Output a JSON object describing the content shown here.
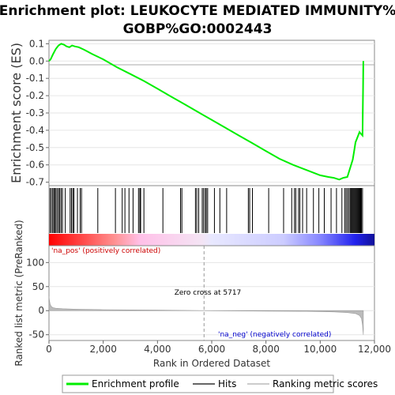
{
  "chart_data": {
    "type": "line",
    "title_line1": "Enrichment plot: LEUKOCYTE MEDIATED IMMUNITY%",
    "title_line2": "GOBP%GO:0002443",
    "top_panel": {
      "ylabel": "Enrichment score (ES)",
      "ylim": [
        -0.72,
        0.12
      ],
      "yticks": [
        0.1,
        0.0,
        -0.1,
        -0.2,
        -0.3,
        -0.4,
        -0.5,
        -0.6,
        -0.7
      ],
      "ytick_labels": [
        "0.1",
        "0.0",
        "-0.1",
        "-0.2",
        "-0.3",
        "-0.4",
        "-0.5",
        "-0.6",
        "-0.7"
      ],
      "series_name": "Enrichment profile",
      "series_color": "#00ee00",
      "x": [
        0,
        60,
        150,
        250,
        350,
        450,
        550,
        650,
        750,
        850,
        950,
        1100,
        1300,
        1600,
        2000,
        2500,
        3000,
        3500,
        4000,
        4500,
        5000,
        5500,
        6000,
        6500,
        7000,
        7500,
        8000,
        8500,
        9000,
        9500,
        10000,
        10300,
        10500,
        10700,
        10850,
        11000,
        11100,
        11200,
        11250,
        11300,
        11350,
        11400,
        11450,
        11500,
        11560,
        11570,
        11580,
        11590
      ],
      "y": [
        0.0,
        0.01,
        0.04,
        0.07,
        0.09,
        0.1,
        0.095,
        0.085,
        0.08,
        0.09,
        0.085,
        0.08,
        0.065,
        0.04,
        0.01,
        -0.035,
        -0.075,
        -0.115,
        -0.16,
        -0.205,
        -0.25,
        -0.295,
        -0.34,
        -0.385,
        -0.43,
        -0.475,
        -0.52,
        -0.565,
        -0.6,
        -0.63,
        -0.66,
        -0.67,
        -0.675,
        -0.685,
        -0.675,
        -0.67,
        -0.62,
        -0.57,
        -0.52,
        -0.47,
        -0.45,
        -0.43,
        -0.41,
        -0.42,
        -0.43,
        -0.3,
        -0.15,
        0.0
      ]
    },
    "hits_panel": {
      "legend_label": "Hits",
      "hit_positions": [
        40,
        90,
        140,
        180,
        220,
        260,
        310,
        360,
        400,
        450,
        500,
        600,
        780,
        830,
        880,
        920,
        1050,
        1150,
        1200,
        1800,
        2450,
        2700,
        2800,
        2950,
        3100,
        3300,
        3350,
        3380,
        3500,
        4200,
        4850,
        4900,
        5400,
        5450,
        5520,
        5650,
        5700,
        5760,
        5800,
        5850,
        6100,
        6300,
        6550,
        7350,
        7400,
        7500,
        8100,
        8650,
        8950,
        9050,
        9100,
        9200,
        9250,
        9350,
        9500,
        9750,
        9950,
        10150,
        10400,
        10600,
        10800,
        10900,
        10950,
        11000,
        11050,
        11100,
        11130,
        11160,
        11190,
        11220,
        11250,
        11280,
        11310,
        11340,
        11370,
        11400,
        11430,
        11460,
        11490,
        11520,
        11560
      ],
      "heatmap_colors": [
        "#ff0000",
        "#ff5a5a",
        "#ffaaaa",
        "#ffbbee",
        "#eeeeff",
        "#ccccff",
        "#8888ff",
        "#4444ff",
        "#0000ff",
        "#111188"
      ]
    },
    "bottom_panel": {
      "ylabel": "Ranked list metric (PreRanked)",
      "ylim": [
        -62,
        135
      ],
      "yticks": [
        100,
        50,
        0,
        -50
      ],
      "ytick_labels": [
        "100",
        "50",
        "0",
        "-50"
      ],
      "series_name": "Ranking metric scores",
      "x": [
        0,
        15,
        40,
        80,
        150,
        250,
        500,
        1000,
        2000,
        3000,
        4000,
        5000,
        5717,
        6500,
        8000,
        9500,
        10500,
        11000,
        11300,
        11450,
        11520,
        11560,
        11590
      ],
      "y": [
        30,
        22,
        14,
        9,
        6,
        5,
        4,
        3,
        2,
        1.5,
        1,
        0.5,
        0,
        -0.5,
        -1,
        -1.5,
        -2.5,
        -4,
        -6,
        -10,
        -16,
        -30,
        -50
      ],
      "pos_label": "'na_pos' (positively correlated)",
      "neg_label": "'na_neg' (negatively correlated)",
      "zero_cross_label": "Zero cross at 5717",
      "zero_cross": 5717
    },
    "xaxis": {
      "xlabel": "Rank in Ordered Dataset",
      "xlim": [
        0,
        12000
      ],
      "xticks": [
        0,
        2000,
        4000,
        6000,
        8000,
        10000,
        12000
      ],
      "xtick_labels": [
        "0",
        "2,000",
        "4,000",
        "6,000",
        "8,000",
        "10,000",
        "12,000"
      ]
    },
    "legend": [
      "Enrichment profile",
      "Hits",
      "Ranking metric scores"
    ]
  },
  "colors": {
    "profile": "#00ee00",
    "hits": "#000000",
    "metric_fill": "#bbbbbb",
    "pos_label": "#cc0000",
    "neg_label": "#0000cc",
    "grid": "#e6e6e6"
  }
}
